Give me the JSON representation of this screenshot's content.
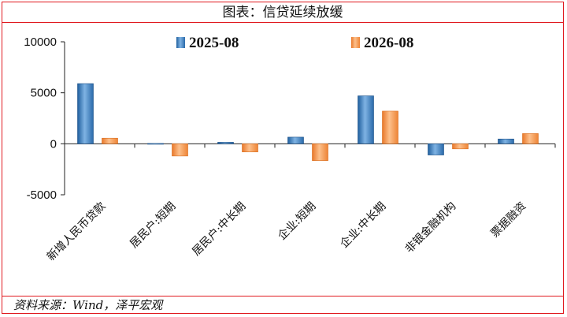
{
  "title": "图表：信贷延续放缓",
  "source": "资料来源：Wind，泽平宏观",
  "chart_data": {
    "type": "bar",
    "categories": [
      "新增人民币贷款",
      "居民户:短期",
      "居民户:中长期",
      "企业:短期",
      "企业:中长期",
      "非银金融机构",
      "票据融资"
    ],
    "series": [
      {
        "name": "2025-08",
        "values": [
          5900,
          30,
          150,
          650,
          4700,
          -1100,
          470
        ],
        "color": "#3a7fc0"
      },
      {
        "name": "2026-08",
        "values": [
          550,
          -1200,
          -800,
          -1650,
          3200,
          -500,
          1000
        ],
        "color": "#f39a4f"
      }
    ],
    "y_ticks": [
      "10000",
      "5000",
      "0",
      "-5000"
    ],
    "ylim": [
      -5000,
      10000
    ],
    "legend": "top"
  }
}
